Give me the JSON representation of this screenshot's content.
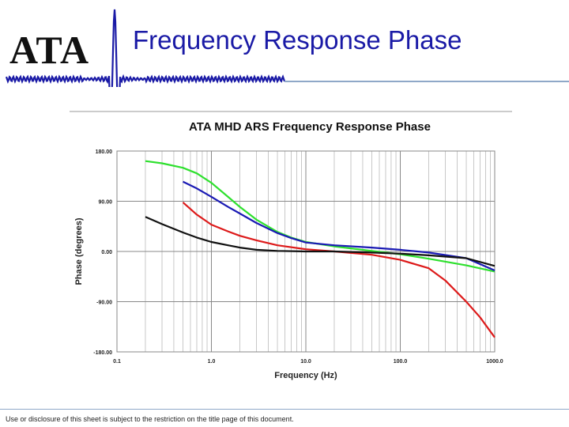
{
  "header": {
    "logo_text": "ATA",
    "title": "Frequency Response Phase"
  },
  "footer": {
    "note": "Use or disclosure of this sheet is subject to the restriction on the title page of this document."
  },
  "colors": {
    "title": "#1a1aa6",
    "wave": "#1a1aa6",
    "rule": "#8fa8c8",
    "grid": "#bbbbbb"
  },
  "chart_data": {
    "type": "line",
    "title": "ATA MHD ARS Frequency Response Phase",
    "xlabel": "Frequency (Hz)",
    "ylabel": "Phase (degrees)",
    "xscale": "log",
    "xlim": [
      0.1,
      1000.0
    ],
    "ylim": [
      -180.0,
      180.0
    ],
    "xticks": [
      0.1,
      1.0,
      10.0,
      100.0,
      1000.0
    ],
    "xtick_labels": [
      "0.1",
      "1.0",
      "10.0",
      "100.0",
      "1000.0"
    ],
    "yticks": [
      180.0,
      90.0,
      0.0,
      -90.0,
      -180.0
    ],
    "ytick_labels": [
      "180.00",
      "90.00",
      "0.00",
      "-90.00",
      "-180.00"
    ],
    "grid": true,
    "series": [
      {
        "name": "green",
        "color": "#2ee02e",
        "x": [
          0.2,
          0.3,
          0.5,
          0.7,
          1.0,
          1.5,
          2.0,
          3.0,
          5.0,
          7.0,
          10.0,
          20.0,
          50.0,
          100.0,
          200.0,
          500.0,
          1000.0
        ],
        "y": [
          162,
          158,
          150,
          140,
          123,
          98,
          80,
          57,
          35,
          25,
          17,
          9,
          1,
          -5,
          -13,
          -25,
          -36
        ]
      },
      {
        "name": "blue",
        "color": "#1a1ab4",
        "x": [
          0.5,
          0.7,
          1.0,
          1.5,
          2.0,
          3.0,
          5.0,
          7.0,
          10.0,
          20.0,
          50.0,
          100.0,
          200.0,
          500.0,
          1000.0
        ],
        "y": [
          125,
          113,
          98,
          80,
          68,
          51,
          33,
          24,
          16,
          11,
          7,
          3,
          -2,
          -12,
          -34
        ]
      },
      {
        "name": "red",
        "color": "#dd1a1a",
        "x": [
          0.5,
          0.7,
          1.0,
          1.5,
          2.0,
          3.0,
          5.0,
          10.0,
          20.0,
          50.0,
          100.0,
          200.0,
          300.0,
          500.0,
          700.0,
          1000.0
        ],
        "y": [
          88,
          66,
          48,
          36,
          28,
          20,
          11,
          4,
          0,
          -6,
          -15,
          -30,
          -52,
          -90,
          -118,
          -154
        ]
      },
      {
        "name": "black",
        "color": "#111111",
        "x": [
          0.2,
          0.3,
          0.5,
          0.7,
          1.0,
          1.5,
          2.0,
          3.0,
          5.0,
          10.0,
          20.0,
          50.0,
          100.0,
          200.0,
          500.0,
          1000.0
        ],
        "y": [
          62,
          49,
          34,
          25,
          17,
          11,
          7,
          3,
          1,
          0,
          0,
          -2,
          -4,
          -7,
          -12,
          -26
        ]
      }
    ]
  }
}
